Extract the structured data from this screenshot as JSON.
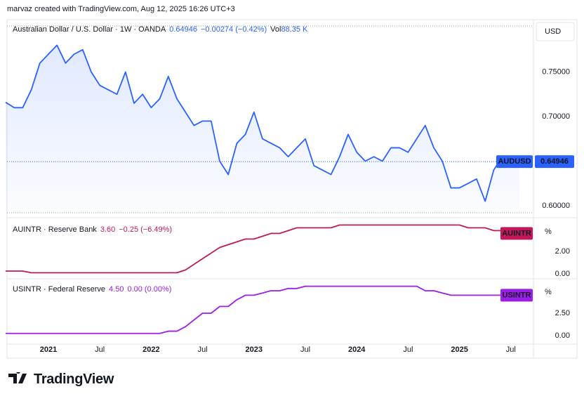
{
  "credit": "marvaz created with TradingView.com, Aug 12, 2025 16:26 UTC+3",
  "brand": "TradingView",
  "chart_data": [
    {
      "type": "area",
      "title": "Australian Dollar / U.S. Dollar · 1W · OANDA",
      "change": "−0.00274 (−0.42%)",
      "volume_label": "Vol",
      "volume": "88.35 K",
      "axis_unit": "USD",
      "tag": "AUDUSD",
      "color": "#2962ff",
      "grid": false,
      "categories": [
        "2020-08",
        "2020-09",
        "2020-10",
        "2020-11",
        "2020-12",
        "2021-01",
        "2021-02",
        "2021-03",
        "2021-04",
        "2021-05",
        "2021-06",
        "2021-07",
        "2021-08",
        "2021-09",
        "2021-10",
        "2021-11",
        "2021-12",
        "2022-01",
        "2022-02",
        "2022-03",
        "2022-04",
        "2022-05",
        "2022-06",
        "2022-07",
        "2022-08",
        "2022-09",
        "2022-10",
        "2022-11",
        "2022-12",
        "2023-01",
        "2023-02",
        "2023-03",
        "2023-04",
        "2023-05",
        "2023-06",
        "2023-07",
        "2023-08",
        "2023-09",
        "2023-10",
        "2023-11",
        "2023-12",
        "2024-01",
        "2024-02",
        "2024-03",
        "2024-04",
        "2024-05",
        "2024-06",
        "2024-07",
        "2024-08",
        "2024-09",
        "2024-10",
        "2024-11",
        "2024-12",
        "2025-01",
        "2025-02",
        "2025-03",
        "2025-04",
        "2025-05",
        "2025-06",
        "2025-07",
        "2025-08"
      ],
      "values": [
        0.716,
        0.71,
        0.71,
        0.73,
        0.76,
        0.77,
        0.78,
        0.76,
        0.77,
        0.775,
        0.75,
        0.735,
        0.73,
        0.725,
        0.75,
        0.715,
        0.725,
        0.71,
        0.72,
        0.745,
        0.72,
        0.705,
        0.69,
        0.695,
        0.695,
        0.65,
        0.635,
        0.67,
        0.68,
        0.705,
        0.675,
        0.67,
        0.665,
        0.655,
        0.665,
        0.675,
        0.645,
        0.64,
        0.635,
        0.655,
        0.68,
        0.66,
        0.65,
        0.655,
        0.65,
        0.665,
        0.665,
        0.66,
        0.675,
        0.69,
        0.665,
        0.65,
        0.62,
        0.62,
        0.625,
        0.63,
        0.605,
        0.64,
        0.655,
        0.65,
        0.64946
      ],
      "xticks": [
        {
          "value": "2021-01",
          "label": "2021"
        },
        {
          "value": "2021-07",
          "label": "Jul"
        },
        {
          "value": "2022-01",
          "label": "2022"
        },
        {
          "value": "2022-07",
          "label": "Jul"
        },
        {
          "value": "2023-01",
          "label": "2023"
        },
        {
          "value": "2023-07",
          "label": "Jul"
        },
        {
          "value": "2024-01",
          "label": "2024"
        },
        {
          "value": "2024-07",
          "label": "Jul"
        },
        {
          "value": "2025-01",
          "label": "2025"
        },
        {
          "value": "2025-07",
          "label": "Jul"
        }
      ],
      "ylim": [
        0.5905,
        0.8087
      ],
      "yticks": [
        {
          "value": 0.6,
          "label": "0.60000"
        },
        {
          "value": 0.7,
          "label": "0.70000"
        },
        {
          "value": 0.75,
          "label": "0.75000"
        }
      ]
    },
    {
      "type": "line",
      "title": "AUINTR · Reserve Bank",
      "last": "3.60",
      "change": "−0.25 (−6.49%)",
      "axis_unit": "%",
      "tag": "AUINTR",
      "color": "#c2185b",
      "values": [
        0.25,
        0.25,
        0.25,
        0.1,
        0.1,
        0.1,
        0.1,
        0.1,
        0.1,
        0.1,
        0.1,
        0.1,
        0.1,
        0.1,
        0.1,
        0.1,
        0.1,
        0.1,
        0.1,
        0.1,
        0.1,
        0.35,
        0.85,
        1.35,
        1.85,
        2.35,
        2.6,
        2.85,
        3.1,
        3.1,
        3.35,
        3.6,
        3.6,
        3.85,
        4.1,
        4.1,
        4.1,
        4.1,
        4.1,
        4.35,
        4.35,
        4.35,
        4.35,
        4.35,
        4.35,
        4.35,
        4.35,
        4.35,
        4.35,
        4.35,
        4.35,
        4.35,
        4.35,
        4.35,
        4.1,
        4.1,
        4.1,
        3.85,
        3.85,
        3.85,
        3.6
      ],
      "ylim": [
        -0.375,
        4.875
      ],
      "yticks": [
        {
          "value": 0,
          "label": "0.00"
        },
        {
          "value": 2,
          "label": "2.00"
        }
      ]
    },
    {
      "type": "line",
      "title": "USINTR · Federal Reserve",
      "last": "4.50",
      "change": "0.00 (0.00%)",
      "axis_unit": "%",
      "tag": "USINTR",
      "color": "#9c1de7",
      "values": [
        0.25,
        0.25,
        0.25,
        0.25,
        0.25,
        0.25,
        0.25,
        0.25,
        0.25,
        0.25,
        0.25,
        0.25,
        0.25,
        0.25,
        0.25,
        0.25,
        0.25,
        0.25,
        0.25,
        0.5,
        0.5,
        1,
        1.75,
        2.5,
        2.5,
        3.25,
        3.25,
        4,
        4.5,
        4.5,
        4.75,
        5,
        5,
        5.25,
        5.25,
        5.5,
        5.5,
        5.5,
        5.5,
        5.5,
        5.5,
        5.5,
        5.5,
        5.5,
        5.5,
        5.5,
        5.5,
        5.5,
        5.5,
        5,
        5,
        4.75,
        4.5,
        4.5,
        4.5,
        4.5,
        4.5,
        4.5,
        4.5,
        4.5,
        4.5
      ],
      "ylim": [
        -0.94,
        6.25
      ],
      "yticks": [
        {
          "value": 0,
          "label": "0.00"
        },
        {
          "value": 2.5,
          "label": "2.50"
        }
      ]
    }
  ]
}
